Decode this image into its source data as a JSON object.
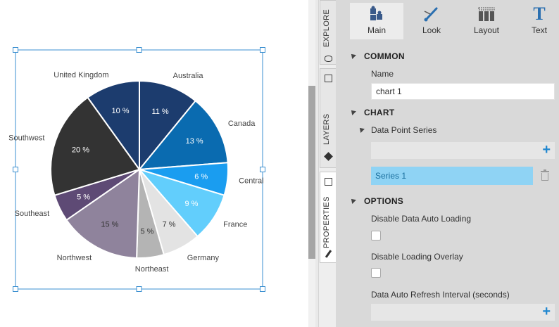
{
  "chart_data": {
    "type": "pie",
    "categories": [
      "Australia",
      "Canada",
      "Central",
      "France",
      "Germany",
      "Northeast",
      "Northwest",
      "Southeast",
      "Southwest",
      "United Kingdom"
    ],
    "values": [
      11,
      13,
      6,
      9,
      7,
      5,
      15,
      5,
      20,
      10
    ],
    "value_labels": [
      "11 %",
      "13 %",
      "6 %",
      "9 %",
      "7 %",
      "5 %",
      "15 %",
      "5 %",
      "20 %",
      "10 %"
    ],
    "colors": [
      "#1c3c6e",
      "#0a6bb0",
      "#1a9df0",
      "#62cefc",
      "#e3e3e3",
      "#b4b4b4",
      "#8f839c",
      "#5e4a75",
      "#333333",
      "#1c3c6e"
    ],
    "title": "",
    "legend": "none"
  },
  "toolbar": {
    "items": [
      {
        "label": "Main",
        "icon": "puzzle-icon"
      },
      {
        "label": "Look",
        "icon": "brush-icon"
      },
      {
        "label": "Layout",
        "icon": "layout-grid-icon"
      },
      {
        "label": "Text",
        "icon": "text-icon"
      }
    ],
    "text_glyph": "T"
  },
  "side_tabs": {
    "explore": "EXPLORE",
    "layers": "LAYERS",
    "properties": "PROPERTIES"
  },
  "panel": {
    "common": {
      "heading": "COMMON",
      "name_label": "Name",
      "name_value": "chart 1"
    },
    "chart": {
      "heading": "CHART",
      "data_point_series_label": "Data Point Series",
      "series": [
        "Series 1"
      ],
      "add_glyph": "+"
    },
    "options": {
      "heading": "OPTIONS",
      "disable_auto_loading_label": "Disable Data Auto Loading",
      "disable_auto_loading": false,
      "disable_loading_overlay_label": "Disable Loading Overlay",
      "disable_loading_overlay": false,
      "refresh_interval_label": "Data Auto Refresh Interval (seconds)",
      "add_glyph": "+"
    }
  }
}
